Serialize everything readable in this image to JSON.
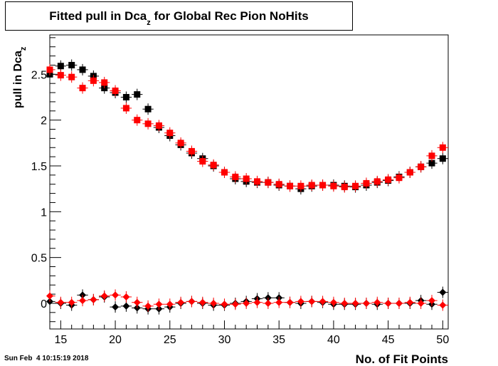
{
  "chart_data": {
    "type": "scatter",
    "title": "Fitted pull in Dca",
    "title_subscript": "z",
    "title_suffix": " for Global Rec Pion NoHits",
    "xlabel": "No. of Fit Points",
    "ylabel": "pull in Dca",
    "ylabel_subscript": "z",
    "xlim": [
      14,
      50.5
    ],
    "ylim": [
      -0.28,
      2.93
    ],
    "xticks": [
      15,
      20,
      25,
      30,
      35,
      40,
      45,
      50
    ],
    "yticks": [
      0,
      0.5,
      1,
      1.5,
      2,
      2.5
    ],
    "ytick_labels": [
      "0",
      "0.5",
      "1",
      "1.5",
      "2",
      "2.5"
    ],
    "grid": false,
    "legend": false,
    "x": [
      14,
      15,
      16,
      17,
      18,
      19,
      20,
      21,
      22,
      23,
      24,
      25,
      26,
      27,
      28,
      29,
      30,
      31,
      32,
      33,
      34,
      35,
      36,
      37,
      38,
      39,
      40,
      41,
      42,
      43,
      44,
      45,
      46,
      47,
      48,
      49,
      50
    ],
    "series": [
      {
        "color": "#000000",
        "marker": "square",
        "values": [
          2.5,
          2.59,
          2.6,
          2.55,
          2.48,
          2.35,
          2.3,
          2.25,
          2.28,
          2.12,
          1.92,
          1.83,
          1.73,
          1.64,
          1.58,
          1.5,
          1.43,
          1.36,
          1.33,
          1.32,
          1.32,
          1.29,
          1.28,
          1.25,
          1.28,
          1.29,
          1.29,
          1.28,
          1.27,
          1.29,
          1.32,
          1.34,
          1.38,
          1.43,
          1.49,
          1.53,
          1.58
        ]
      },
      {
        "color": "#ff0000",
        "marker": "square",
        "values": [
          2.55,
          2.49,
          2.47,
          2.35,
          2.43,
          2.41,
          2.32,
          2.13,
          2.0,
          1.96,
          1.94,
          1.86,
          1.75,
          1.66,
          1.55,
          1.51,
          1.43,
          1.38,
          1.36,
          1.33,
          1.32,
          1.3,
          1.28,
          1.28,
          1.29,
          1.29,
          1.28,
          1.27,
          1.28,
          1.31,
          1.33,
          1.35,
          1.37,
          1.43,
          1.49,
          1.61,
          1.7
        ]
      },
      {
        "color": "#000000",
        "marker": "diamond",
        "values": [
          0.02,
          0.0,
          -0.02,
          0.09,
          0.04,
          0.07,
          -0.04,
          -0.03,
          -0.05,
          -0.06,
          -0.06,
          -0.04,
          0.0,
          0.02,
          0.0,
          -0.02,
          -0.02,
          0.0,
          0.02,
          0.05,
          0.06,
          0.06,
          0.01,
          0.0,
          0.02,
          0.01,
          -0.01,
          -0.01,
          -0.01,
          0.0,
          -0.01,
          0.0,
          0.0,
          0.0,
          0.03,
          -0.01,
          0.12
        ]
      },
      {
        "color": "#ff0000",
        "marker": "diamond",
        "values": [
          0.08,
          0.01,
          0.01,
          0.03,
          0.04,
          0.08,
          0.09,
          0.07,
          0.01,
          -0.03,
          -0.01,
          -0.01,
          0.01,
          0.02,
          0.01,
          0.0,
          -0.01,
          -0.01,
          0.0,
          0.01,
          0.0,
          0.01,
          0.01,
          0.02,
          0.02,
          0.02,
          0.01,
          0.0,
          0.0,
          0.0,
          0.01,
          0.0,
          0.0,
          0.01,
          0.0,
          0.03,
          -0.02
        ]
      }
    ]
  },
  "footer": {
    "date": "Sun Feb  4 10:15:19 2018"
  }
}
